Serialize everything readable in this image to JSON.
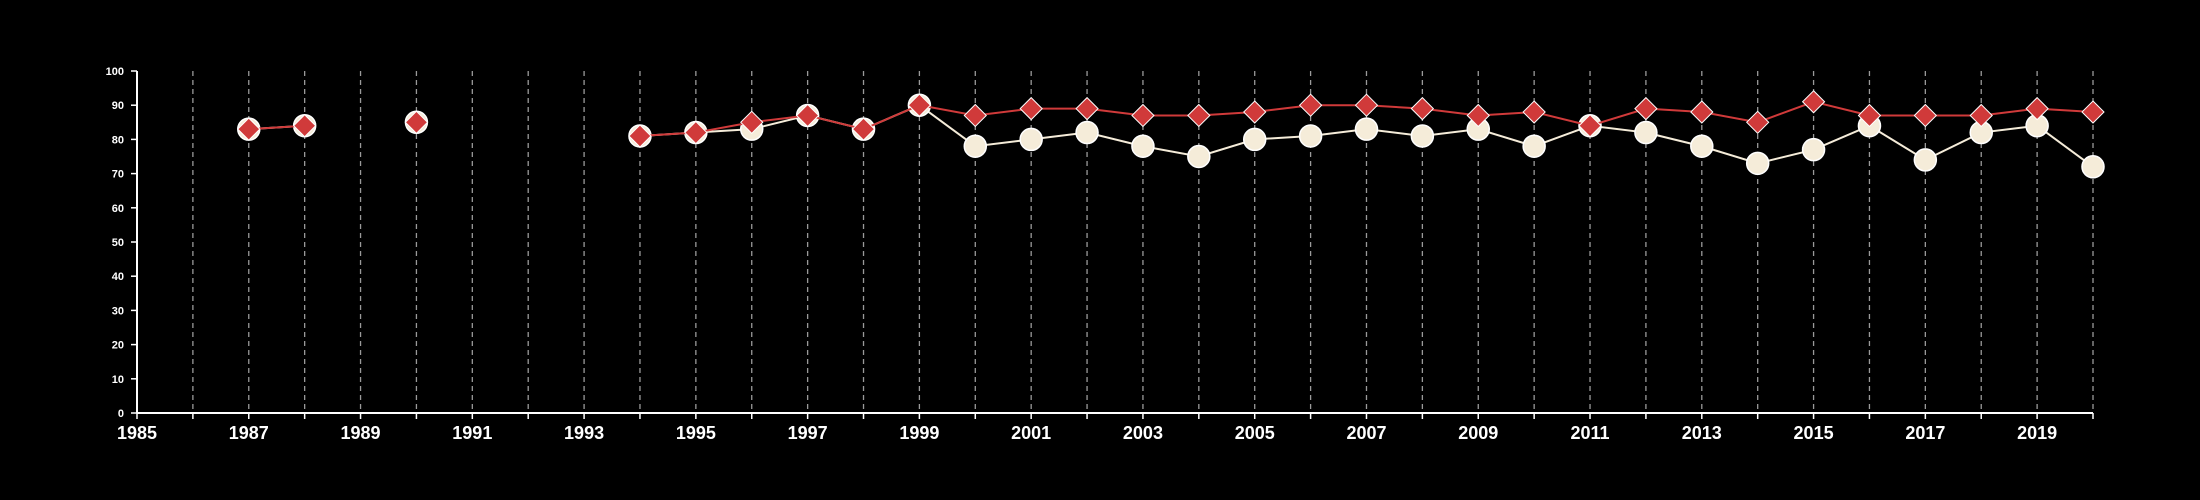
{
  "chart_data": {
    "type": "line",
    "title": "",
    "xlabel": "",
    "ylabel": "",
    "xlim": [
      1985,
      2020
    ],
    "ylim": [
      0,
      100
    ],
    "x_ticks": [
      "1985",
      "1987",
      "1989",
      "1991",
      "1993",
      "1995",
      "1997",
      "1999",
      "2001",
      "2003",
      "2005",
      "2007",
      "2009",
      "2011",
      "2013",
      "2015",
      "2017",
      "2019"
    ],
    "y_ticks": [
      "0",
      "10",
      "20",
      "30",
      "40",
      "50",
      "60",
      "70",
      "80",
      "90",
      "100"
    ],
    "grid": "vertical dashed lines at each year",
    "background": "#000000",
    "series": [
      {
        "color": "#f5ecd9",
        "marker": "circle",
        "segments": [
          [
            [
              1987,
              83
            ],
            [
              1988,
              84
            ]
          ],
          [
            [
              1990,
              85
            ]
          ],
          [
            [
              1994,
              81
            ],
            [
              1995,
              82
            ],
            [
              1996,
              83
            ],
            [
              1997,
              87
            ],
            [
              1998,
              83
            ],
            [
              1999,
              90
            ],
            [
              2000,
              78
            ],
            [
              2001,
              80
            ],
            [
              2002,
              82
            ],
            [
              2003,
              78
            ],
            [
              2004,
              75
            ],
            [
              2005,
              80
            ],
            [
              2006,
              81
            ],
            [
              2007,
              83
            ],
            [
              2008,
              81
            ],
            [
              2009,
              83
            ],
            [
              2010,
              78
            ],
            [
              2011,
              84
            ],
            [
              2012,
              82
            ],
            [
              2013,
              78
            ],
            [
              2014,
              73
            ],
            [
              2015,
              77
            ],
            [
              2016,
              84
            ],
            [
              2017,
              74
            ],
            [
              2018,
              82
            ],
            [
              2019,
              84
            ],
            [
              2020,
              72
            ]
          ]
        ]
      },
      {
        "color": "#d03a3a",
        "marker": "diamond",
        "segments": [
          [
            [
              1987,
              83
            ],
            [
              1988,
              84
            ]
          ],
          [
            [
              1990,
              85
            ]
          ],
          [
            [
              1994,
              81
            ],
            [
              1995,
              82
            ],
            [
              1996,
              85
            ],
            [
              1997,
              87
            ],
            [
              1998,
              83
            ],
            [
              1999,
              90
            ],
            [
              2000,
              87
            ],
            [
              2001,
              89
            ],
            [
              2002,
              89
            ],
            [
              2003,
              87
            ],
            [
              2004,
              87
            ],
            [
              2005,
              88
            ],
            [
              2006,
              90
            ],
            [
              2007,
              90
            ],
            [
              2008,
              89
            ],
            [
              2009,
              87
            ],
            [
              2010,
              88
            ],
            [
              2011,
              84
            ],
            [
              2012,
              89
            ],
            [
              2013,
              88
            ],
            [
              2014,
              85
            ],
            [
              2015,
              91
            ],
            [
              2016,
              87
            ],
            [
              2017,
              87
            ],
            [
              2018,
              87
            ],
            [
              2019,
              89
            ],
            [
              2020,
              88
            ]
          ]
        ]
      }
    ]
  }
}
